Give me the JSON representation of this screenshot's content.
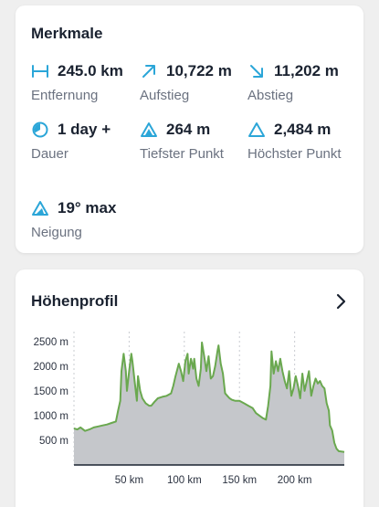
{
  "features": {
    "title": "Merkmale",
    "stats": [
      {
        "icon": "distance-icon",
        "value": "245.0 km",
        "label": "Entfernung"
      },
      {
        "icon": "ascent-arrow-icon",
        "value": "10,722 m",
        "label": "Aufstieg"
      },
      {
        "icon": "descent-arrow-icon",
        "value": "11,202 m",
        "label": "Abstieg"
      },
      {
        "icon": "duration-clock-icon",
        "value": "1 day +",
        "label": "Dauer"
      },
      {
        "icon": "lowest-point-triangle-icon",
        "value": "264 m",
        "label": "Tiefster Punkt"
      },
      {
        "icon": "highest-point-triangle-icon",
        "value": "2,484 m",
        "label": "Höchster Punkt"
      },
      {
        "icon": "incline-triangle-icon",
        "value": "19° max",
        "label": "Neigung"
      }
    ]
  },
  "profile": {
    "title": "Höhenprofil",
    "chevron_icon": "chevron-right-icon"
  },
  "colors": {
    "accent": "#2ba6d8",
    "line": "#6aa84f",
    "fill": "#c5c7cb"
  },
  "chart_data": {
    "type": "area",
    "title": "",
    "xlabel": "",
    "ylabel": "",
    "xlim": [
      0,
      245
    ],
    "ylim": [
      0,
      2700
    ],
    "x_ticks": [
      50,
      100,
      150,
      200
    ],
    "x_tick_labels": [
      "50 km",
      "100 km",
      "150 km",
      "200 km"
    ],
    "y_ticks": [
      500,
      1000,
      1500,
      2000,
      2500
    ],
    "y_tick_labels": [
      "500 m",
      "1000 m",
      "1500 m",
      "2000 m",
      "2500 m"
    ],
    "grid": "vertical-dotted",
    "series": [
      {
        "x": [
          0,
          3,
          6,
          10,
          14,
          18,
          22,
          26,
          30,
          34,
          38,
          40,
          42,
          43,
          45,
          47,
          48,
          50,
          52,
          53,
          55,
          57,
          58,
          60,
          62,
          65,
          68,
          70,
          73,
          76,
          80,
          84,
          88,
          90,
          92,
          95,
          97,
          99,
          101,
          103,
          104,
          106,
          108,
          109,
          111,
          113,
          115,
          116,
          118,
          120,
          122,
          124,
          126,
          128,
          130,
          131,
          133,
          135,
          137,
          139,
          141,
          143,
          146,
          150,
          154,
          158,
          162,
          165,
          168,
          171,
          174,
          176,
          178,
          179,
          181,
          183,
          185,
          187,
          189,
          191,
          193,
          195,
          197,
          199,
          201,
          203,
          205,
          207,
          209,
          211,
          213,
          215,
          217,
          219,
          221,
          223,
          225,
          227,
          229,
          231,
          232,
          234,
          236,
          238,
          240,
          245
        ],
        "y": [
          740,
          720,
          760,
          690,
          720,
          760,
          780,
          800,
          820,
          850,
          880,
          1100,
          1300,
          1900,
          2250,
          1900,
          1500,
          1900,
          2250,
          2100,
          1700,
          1300,
          1800,
          1500,
          1350,
          1250,
          1200,
          1200,
          1280,
          1350,
          1380,
          1400,
          1450,
          1600,
          1800,
          2050,
          1900,
          1700,
          2100,
          2250,
          1850,
          2150,
          1950,
          2150,
          1750,
          1600,
          1950,
          2480,
          2200,
          1900,
          2200,
          1750,
          1800,
          2000,
          2300,
          2420,
          2050,
          1850,
          1450,
          1400,
          1350,
          1320,
          1300,
          1300,
          1250,
          1200,
          1150,
          1050,
          1000,
          950,
          920,
          1200,
          1600,
          2300,
          1850,
          2100,
          1900,
          2150,
          1900,
          1700,
          1550,
          1900,
          1400,
          1550,
          1800,
          1600,
          1350,
          1850,
          1500,
          1700,
          1900,
          1400,
          1600,
          1750,
          1650,
          1700,
          1600,
          1550,
          1250,
          1100,
          800,
          700,
          450,
          330,
          280,
          264
        ]
      }
    ]
  }
}
